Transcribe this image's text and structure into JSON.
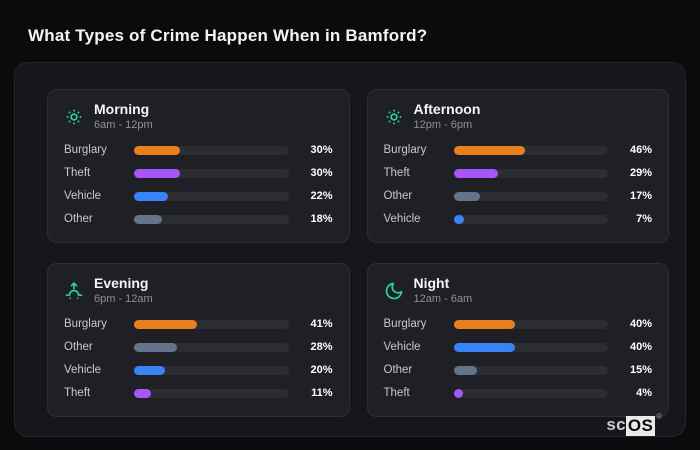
{
  "title": "What Types of Crime Happen When in Bamford?",
  "logo": {
    "prefix": "sc",
    "boxed": "OS",
    "registered": "®"
  },
  "colors": {
    "burglary": "#e8801f",
    "theft": "#a855f7",
    "vehicle": "#3b82f6",
    "other": "#64748b",
    "accent_icon": "#2dd4a2",
    "bar_track": "#2b2d32",
    "card_bg": "#1f2025",
    "container_bg": "#16171b",
    "page_bg": "#0a0b0d"
  },
  "chart_data": [
    {
      "type": "bar",
      "title": "Morning",
      "subtitle": "6am - 12pm",
      "icon": "sun-dotted-icon",
      "unit": "%",
      "xlim": [
        0,
        100
      ],
      "rows": [
        {
          "label": "Burglary",
          "value": 30,
          "display": "30%",
          "color": "#e8801f"
        },
        {
          "label": "Theft",
          "value": 30,
          "display": "30%",
          "color": "#a855f7"
        },
        {
          "label": "Vehicle",
          "value": 22,
          "display": "22%",
          "color": "#3b82f6"
        },
        {
          "label": "Other",
          "value": 18,
          "display": "18%",
          "color": "#64748b"
        }
      ]
    },
    {
      "type": "bar",
      "title": "Afternoon",
      "subtitle": "12pm - 6pm",
      "icon": "sun-dotted-icon",
      "unit": "%",
      "xlim": [
        0,
        100
      ],
      "rows": [
        {
          "label": "Burglary",
          "value": 46,
          "display": "46%",
          "color": "#e8801f"
        },
        {
          "label": "Theft",
          "value": 29,
          "display": "29%",
          "color": "#a855f7"
        },
        {
          "label": "Other",
          "value": 17,
          "display": "17%",
          "color": "#64748b"
        },
        {
          "label": "Vehicle",
          "value": 7,
          "display": "7%",
          "color": "#3b82f6"
        }
      ]
    },
    {
      "type": "bar",
      "title": "Evening",
      "subtitle": "6pm - 12am",
      "icon": "sunset-icon",
      "unit": "%",
      "xlim": [
        0,
        100
      ],
      "rows": [
        {
          "label": "Burglary",
          "value": 41,
          "display": "41%",
          "color": "#e8801f"
        },
        {
          "label": "Other",
          "value": 28,
          "display": "28%",
          "color": "#64748b"
        },
        {
          "label": "Vehicle",
          "value": 20,
          "display": "20%",
          "color": "#3b82f6"
        },
        {
          "label": "Theft",
          "value": 11,
          "display": "11%",
          "color": "#a855f7"
        }
      ]
    },
    {
      "type": "bar",
      "title": "Night",
      "subtitle": "12am - 6am",
      "icon": "moon-icon",
      "unit": "%",
      "xlim": [
        0,
        100
      ],
      "rows": [
        {
          "label": "Burglary",
          "value": 40,
          "display": "40%",
          "color": "#e8801f"
        },
        {
          "label": "Vehicle",
          "value": 40,
          "display": "40%",
          "color": "#3b82f6"
        },
        {
          "label": "Other",
          "value": 15,
          "display": "15%",
          "color": "#64748b"
        },
        {
          "label": "Theft",
          "value": 4,
          "display": "4%",
          "color": "#a855f7"
        }
      ]
    }
  ]
}
